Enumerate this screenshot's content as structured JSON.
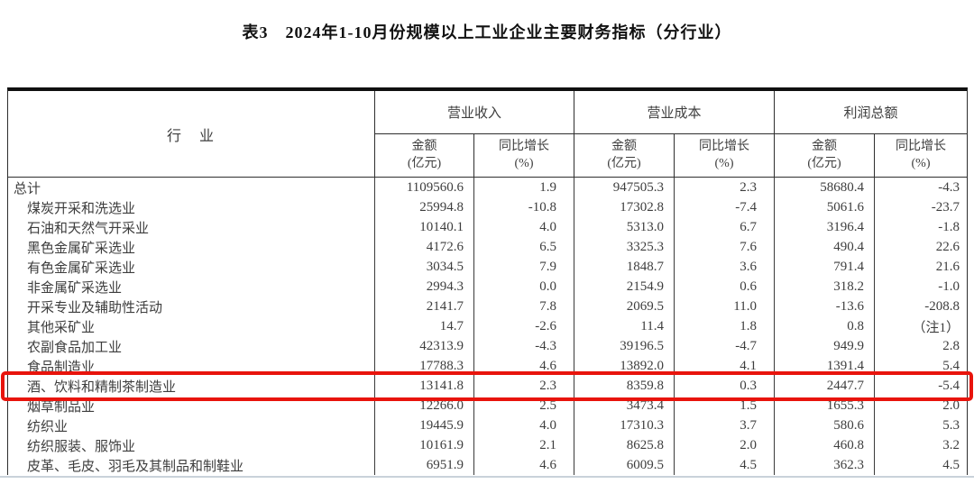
{
  "title": "表3　2024年1-10月份规模以上工业企业主要财务指标（分行业）",
  "colors": {
    "highlight_red": "#e8140c",
    "border_dark": "#101010",
    "text": "#3d3d3d"
  },
  "table": {
    "industry_header": "行　业",
    "groups": [
      {
        "label": "营业收入"
      },
      {
        "label": "营业成本"
      },
      {
        "label": "利润总额"
      }
    ],
    "sub": {
      "amount_line1": "金额",
      "amount_line2": "(亿元)",
      "growth_line1": "同比增长",
      "growth_line2": "(%)"
    }
  },
  "rows": [
    {
      "industry": "总计",
      "indent": false,
      "highlight": false,
      "values": [
        "1109560.6",
        "1.9",
        "947505.3",
        "2.3",
        "58680.4",
        "-4.3"
      ]
    },
    {
      "industry": "煤炭开采和洗选业",
      "indent": true,
      "highlight": false,
      "values": [
        "25994.8",
        "-10.8",
        "17302.8",
        "-7.4",
        "5061.6",
        "-23.7"
      ]
    },
    {
      "industry": "石油和天然气开采业",
      "indent": true,
      "highlight": false,
      "values": [
        "10140.1",
        "4.0",
        "5313.0",
        "6.7",
        "3196.4",
        "-1.8"
      ]
    },
    {
      "industry": "黑色金属矿采选业",
      "indent": true,
      "highlight": false,
      "values": [
        "4172.6",
        "6.5",
        "3325.3",
        "7.6",
        "490.4",
        "22.6"
      ]
    },
    {
      "industry": "有色金属矿采选业",
      "indent": true,
      "highlight": false,
      "values": [
        "3034.5",
        "7.9",
        "1848.7",
        "3.6",
        "791.4",
        "21.6"
      ]
    },
    {
      "industry": "非金属矿采选业",
      "indent": true,
      "highlight": false,
      "values": [
        "2994.3",
        "0.0",
        "2154.9",
        "0.6",
        "318.2",
        "-1.0"
      ]
    },
    {
      "industry": "开采专业及辅助性活动",
      "indent": true,
      "highlight": false,
      "values": [
        "2141.7",
        "7.8",
        "2069.5",
        "11.0",
        "-13.6",
        "-208.8"
      ]
    },
    {
      "industry": "其他采矿业",
      "indent": true,
      "highlight": false,
      "values": [
        "14.7",
        "-2.6",
        "11.4",
        "1.8",
        "0.8",
        "（注1）"
      ]
    },
    {
      "industry": "农副食品加工业",
      "indent": true,
      "highlight": false,
      "values": [
        "42313.9",
        "-4.3",
        "39196.5",
        "-4.7",
        "949.9",
        "2.8"
      ]
    },
    {
      "industry": "食品制造业",
      "indent": true,
      "highlight": false,
      "values": [
        "17788.3",
        "4.6",
        "13892.0",
        "4.1",
        "1391.4",
        "5.4"
      ]
    },
    {
      "industry": "酒、饮料和精制茶制造业",
      "indent": true,
      "highlight": true,
      "values": [
        "13141.8",
        "2.3",
        "8359.8",
        "0.3",
        "2447.7",
        "-5.4"
      ]
    },
    {
      "industry": "烟草制品业",
      "indent": true,
      "highlight": false,
      "values": [
        "12266.0",
        "2.5",
        "3473.4",
        "1.5",
        "1655.3",
        "2.0"
      ]
    },
    {
      "industry": "纺织业",
      "indent": true,
      "highlight": false,
      "values": [
        "19445.9",
        "4.0",
        "17310.3",
        "3.7",
        "580.6",
        "5.3"
      ]
    },
    {
      "industry": "纺织服装、服饰业",
      "indent": true,
      "highlight": false,
      "values": [
        "10161.9",
        "2.1",
        "8625.8",
        "2.0",
        "460.8",
        "3.2"
      ]
    },
    {
      "industry": "皮革、毛皮、羽毛及其制品和制鞋业",
      "indent": true,
      "highlight": false,
      "values": [
        "6951.9",
        "4.6",
        "6009.5",
        "4.5",
        "362.3",
        "4.5"
      ]
    }
  ]
}
